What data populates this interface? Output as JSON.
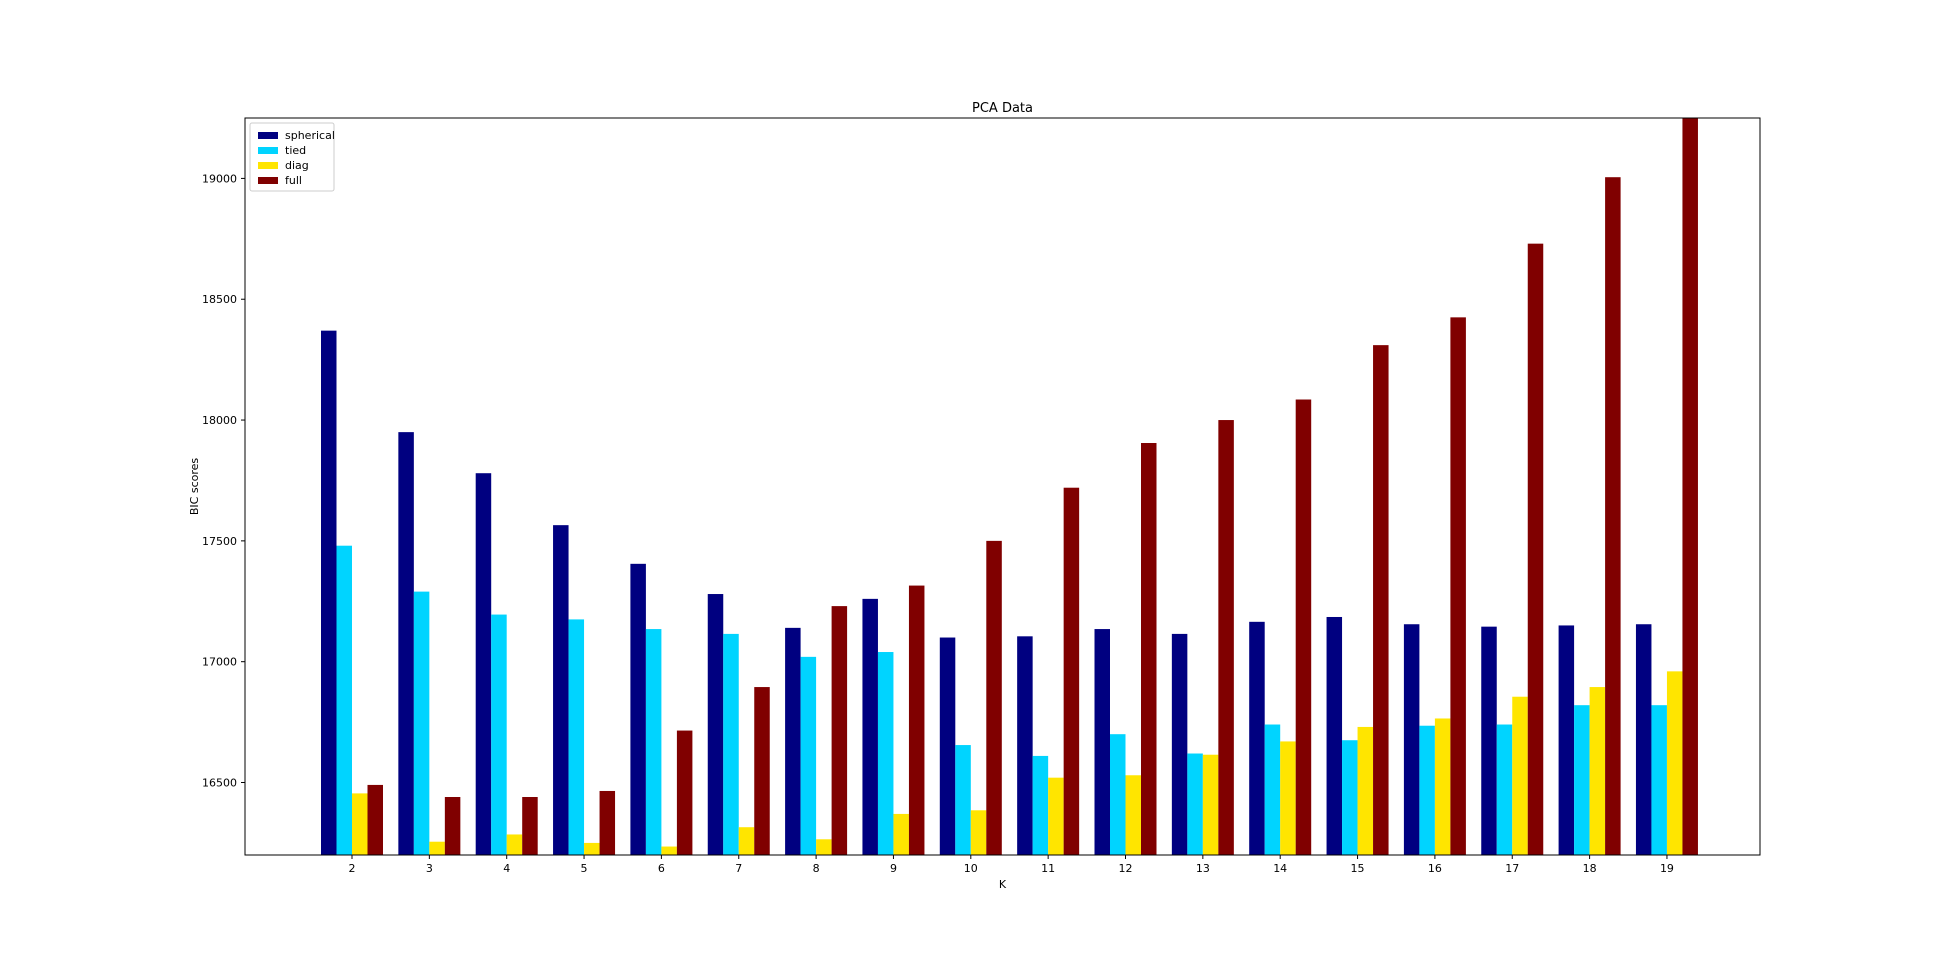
{
  "chart_data": {
    "type": "bar",
    "title": "PCA Data",
    "xlabel": "K",
    "ylabel": "BIC scores",
    "categories": [
      "2",
      "3",
      "4",
      "5",
      "6",
      "7",
      "8",
      "9",
      "10",
      "11",
      "12",
      "13",
      "14",
      "15",
      "16",
      "17",
      "18",
      "19"
    ],
    "ylim": [
      16200,
      19250
    ],
    "yticks": [
      16500,
      17000,
      17500,
      18000,
      18500,
      19000
    ],
    "grid": false,
    "legend_position": "top-left",
    "series": [
      {
        "name": "spherical",
        "color": "#000080",
        "values": [
          18370,
          17950,
          17780,
          17565,
          17405,
          17280,
          17140,
          17260,
          17100,
          17105,
          17135,
          17115,
          17165,
          17185,
          17155,
          17145,
          17150,
          17155
        ]
      },
      {
        "name": "tied",
        "color": "#00d4ff",
        "values": [
          17480,
          17290,
          17195,
          17175,
          17135,
          17115,
          17020,
          17040,
          16655,
          16610,
          16700,
          16620,
          16740,
          16675,
          16735,
          16740,
          16820,
          16820
        ]
      },
      {
        "name": "diag",
        "color": "#ffe500",
        "values": [
          16455,
          16255,
          16285,
          16250,
          16235,
          16315,
          16265,
          16370,
          16385,
          16520,
          16530,
          16615,
          16670,
          16730,
          16765,
          16855,
          16895,
          16960
        ]
      },
      {
        "name": "full",
        "color": "#800000",
        "values": [
          16490,
          16440,
          16440,
          16465,
          16715,
          16895,
          17230,
          17315,
          17500,
          17720,
          17905,
          18000,
          18085,
          18310,
          18425,
          18730,
          19005,
          19260
        ]
      }
    ]
  }
}
